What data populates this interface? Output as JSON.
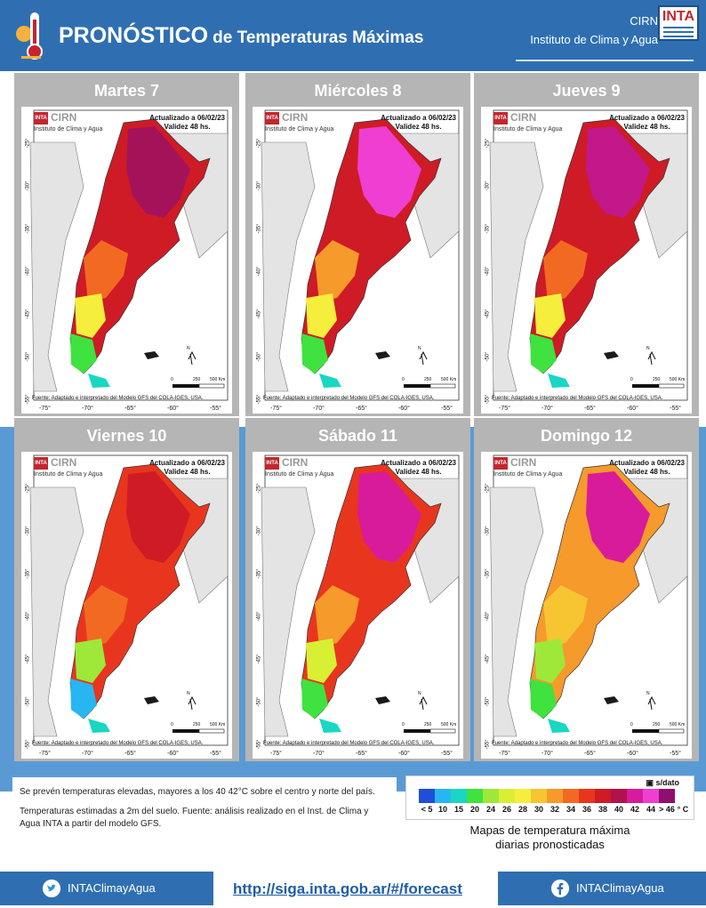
{
  "header": {
    "title_big": "PRONÓSTICO",
    "title_rest": "de Temperaturas  Máximas",
    "brand_short": "CIRN",
    "brand_full": "Instituto de Clima y Agua",
    "logo_text": "INTA"
  },
  "map_common": {
    "updated": "Actualizado a 06/02/23",
    "validity": "Validez 48 hs.",
    "logo_inta": "INTA",
    "logo_cirn": "CIRN",
    "logo_inst": "Instituto de Clima y Agua",
    "source": "Fuente: Adaptado e interpretado del Modelo GFS del COLA-IGES, USA.",
    "lat_labels": [
      "-25°",
      "-30°",
      "-35°",
      "-40°",
      "-45°",
      "-50°",
      "-55°"
    ],
    "lon_labels": [
      "-75°",
      "-70°",
      "-65°",
      "-60°",
      "-55°"
    ],
    "scale_labels": [
      "0",
      "250",
      "500 Km"
    ],
    "north": "N"
  },
  "panels": [
    {
      "day": "Martes 7"
    },
    {
      "day": "Miércoles 8"
    },
    {
      "day": "Jueves 9"
    },
    {
      "day": "Viernes 10"
    },
    {
      "day": "Sábado 11"
    },
    {
      "day": "Domingo 12"
    }
  ],
  "notes": {
    "line1": "Se prevén temperaturas elevadas, mayores a los 40 42°C sobre el centro y norte del país.",
    "line2": "Temperaturas estimadas a 2m del suelo. Fuente: análisis realizado en el Inst. de Clima y Agua    INTA a partir del modelo GFS."
  },
  "legend": {
    "no_data": "s/dato",
    "colors": [
      "#1f4fd6",
      "#27b6f2",
      "#19d7c2",
      "#3fe23f",
      "#9ee83a",
      "#d9ef34",
      "#f6ee3c",
      "#f7c531",
      "#f59a2b",
      "#f26a22",
      "#e8361e",
      "#cf1b25",
      "#b0134a",
      "#d81b9a",
      "#ee3fd2",
      "#8f0f6e"
    ],
    "labels": [
      "< 5",
      "10",
      "15",
      "20",
      "24",
      "26",
      "28",
      "30",
      "32",
      "34",
      "36",
      "38",
      "40",
      "42",
      "44",
      "> 46"
    ],
    "unit": "° C",
    "caption1": "Mapas de temperatura  máxima",
    "caption2": "diarias  pronosticadas"
  },
  "footer": {
    "twitter": "INTAClimayAgua",
    "url": "http://siga.inta.gob.ar/#/forecast",
    "facebook": "INTAClimayAgua"
  }
}
